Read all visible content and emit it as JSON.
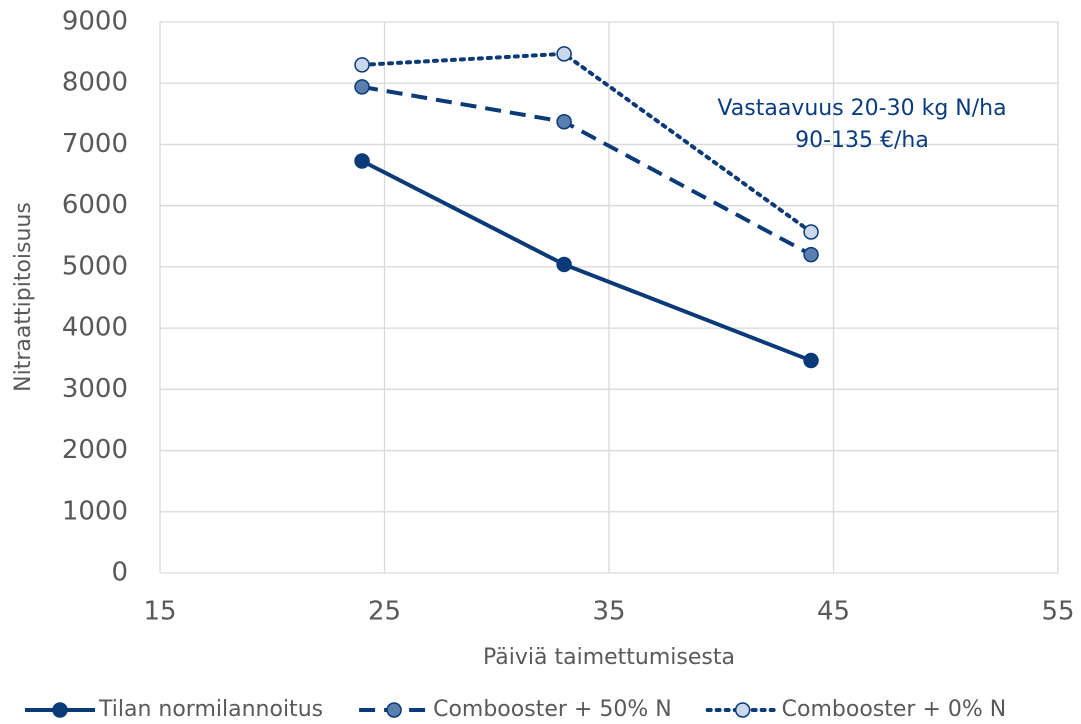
{
  "chart_data": {
    "type": "line",
    "x_label": "Päiviä taimettumisesta",
    "y_label": "Nitraattipitoisuus",
    "annotation": [
      "Vastaavuus 20-30 kg N/ha",
      "90-135 €/ha"
    ],
    "x": [
      24,
      33,
      44
    ],
    "series": [
      {
        "name": "Tilan normilannoitus",
        "color": "#0b3a78",
        "marker_fill": "#0b3a78",
        "line_style": "solid",
        "values": [
          6730,
          5040,
          3470
        ]
      },
      {
        "name": "Combooster + 50% N",
        "color": "#0b3a78",
        "marker_fill": "#5a7fae",
        "line_style": "dashed",
        "values": [
          7940,
          7370,
          5200
        ]
      },
      {
        "name": "Combooster + 0% N",
        "color": "#0b3a78",
        "marker_fill": "#c9d8eb",
        "line_style": "dotted",
        "values": [
          8300,
          8480,
          5570
        ]
      }
    ],
    "xlim": [
      15,
      55
    ],
    "xticks": [
      15,
      25,
      35,
      45,
      55
    ],
    "ylim": [
      0,
      9000
    ],
    "yticks": [
      0,
      1000,
      2000,
      3000,
      4000,
      5000,
      6000,
      7000,
      8000,
      9000
    ],
    "grid": true,
    "legend": "bottom"
  }
}
